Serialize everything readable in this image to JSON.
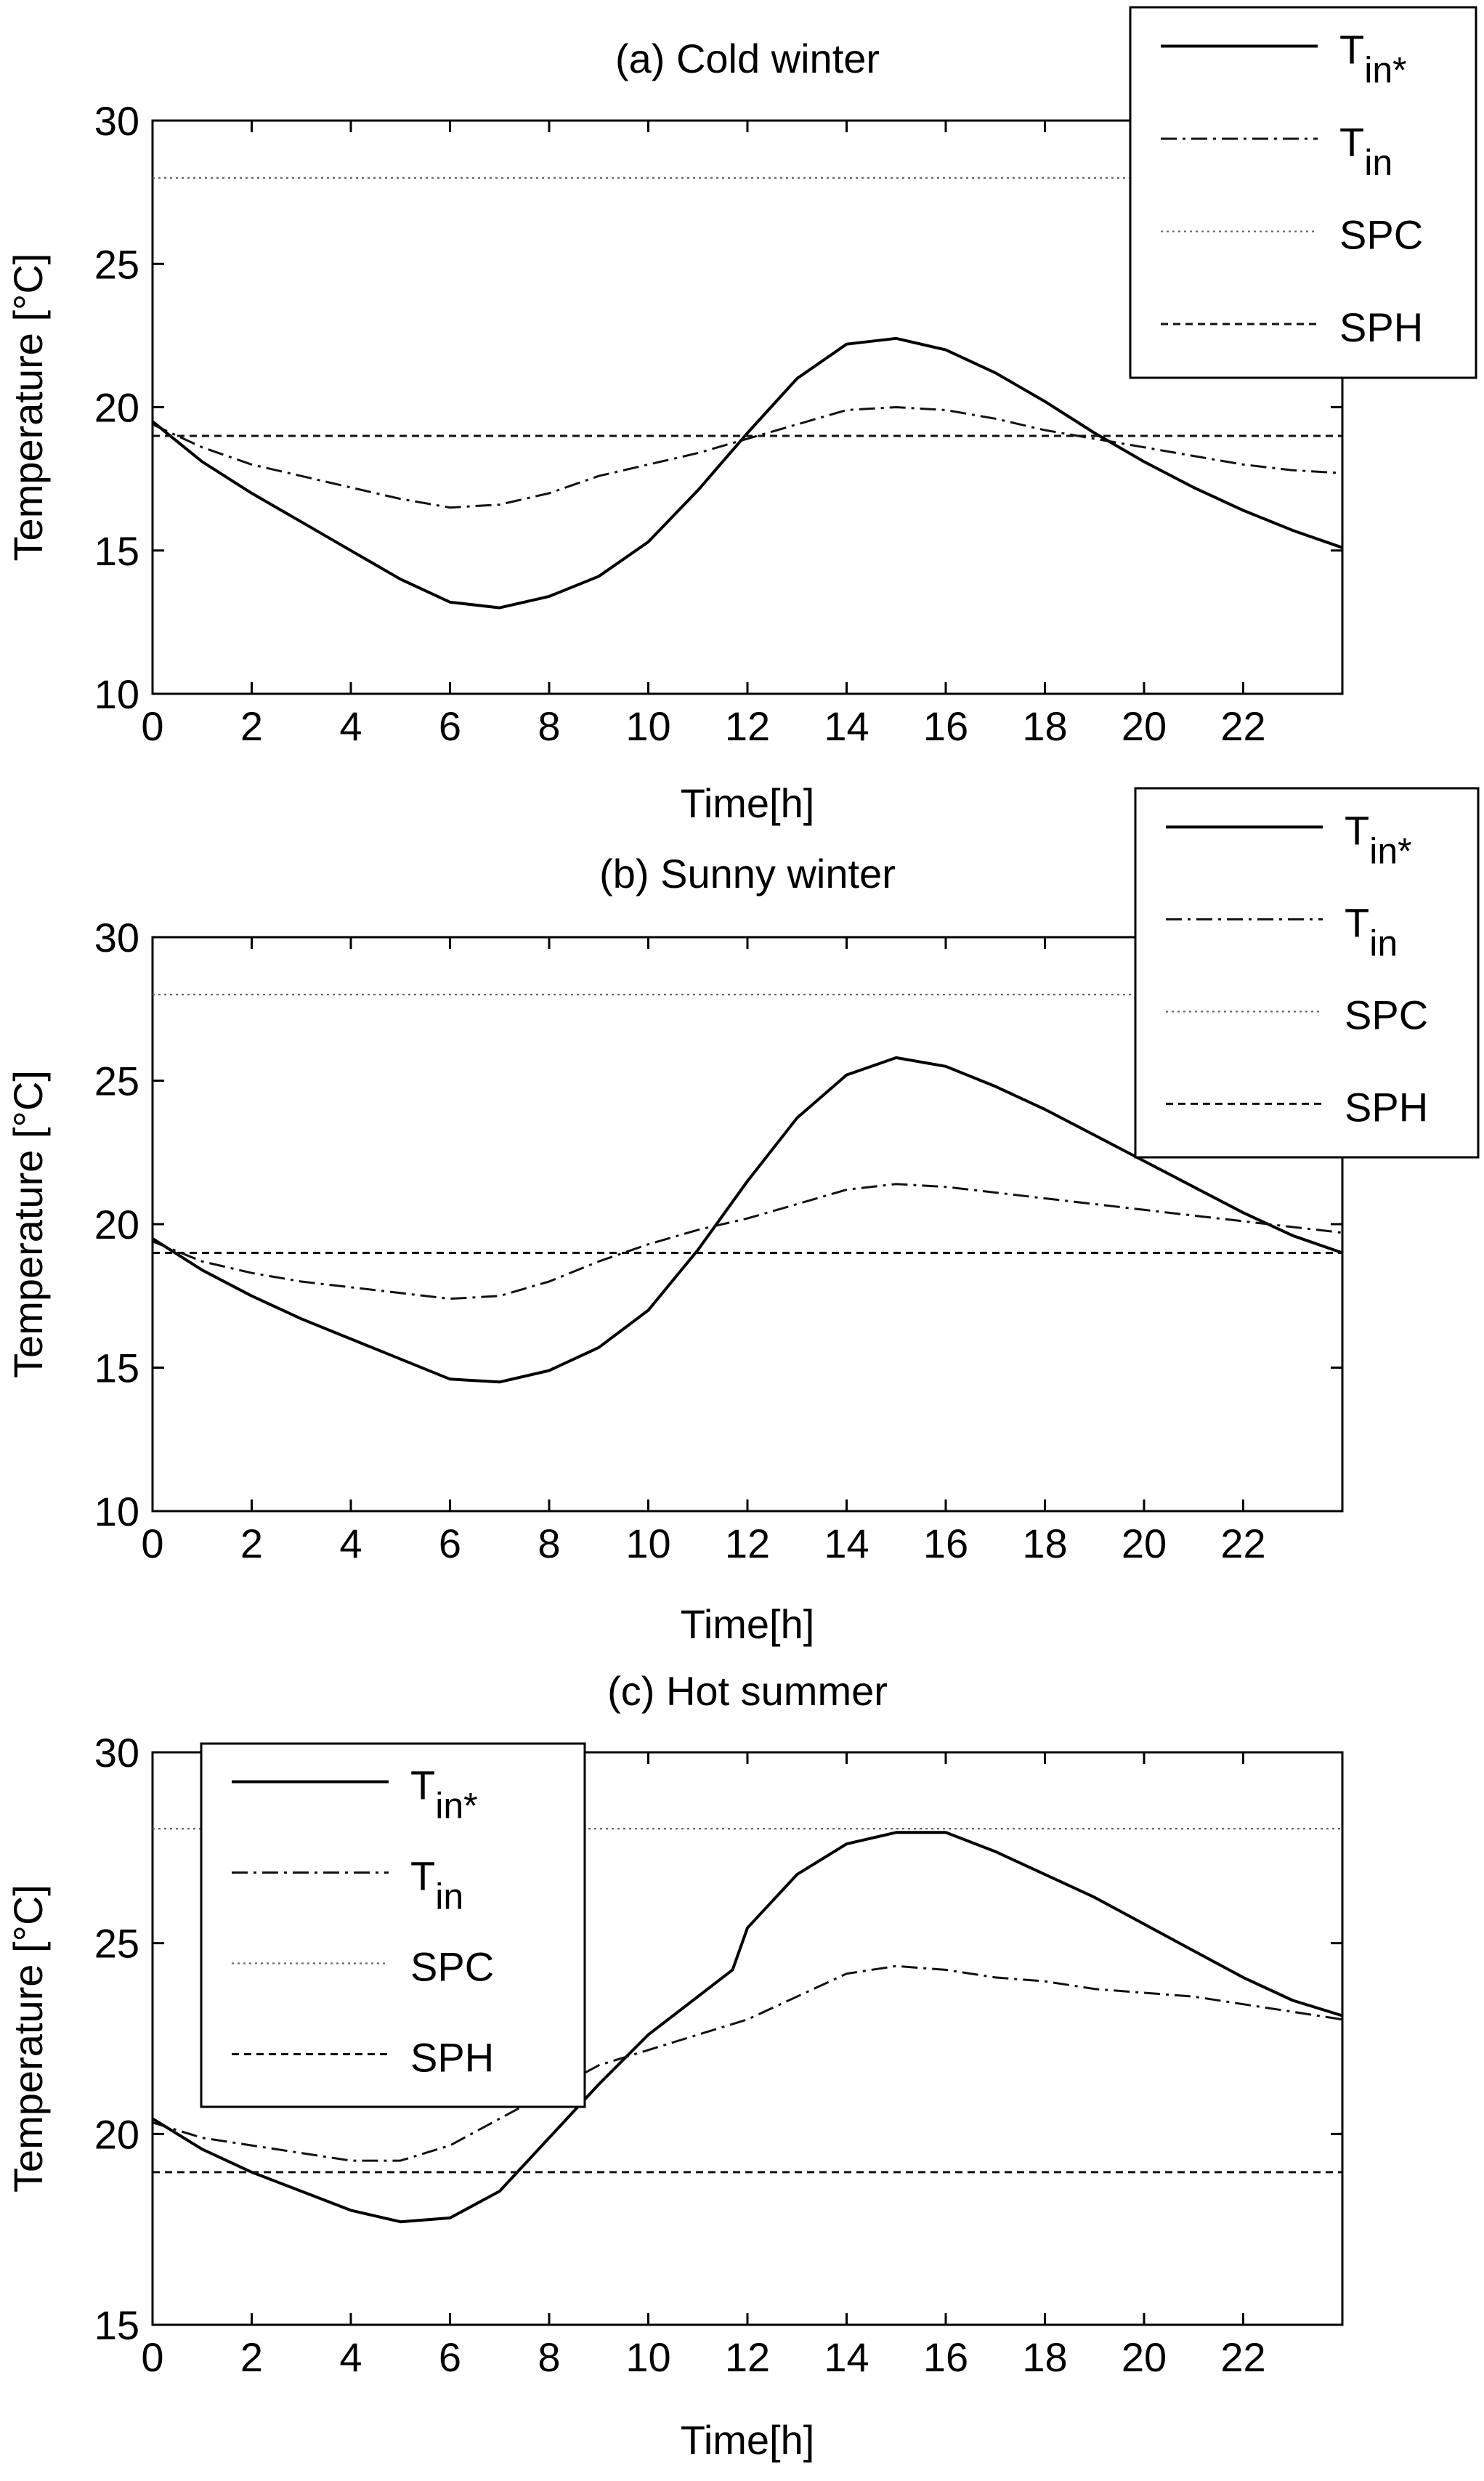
{
  "figure": {
    "xlabel": "Time[h]",
    "ylabel": "Temperature [°C]"
  },
  "legend_labels": [
    {
      "key": "tin_star",
      "main": "T",
      "sub": "in*"
    },
    {
      "key": "tin",
      "main": "T",
      "sub": "in"
    },
    {
      "key": "spc",
      "main": "SPC",
      "sub": ""
    },
    {
      "key": "sph",
      "main": "SPH",
      "sub": ""
    }
  ],
  "chart_data": [
    {
      "type": "line",
      "title": "(a) Cold winter",
      "xlabel": "Time[h]",
      "ylabel": "Temperature [°C]",
      "xlim": [
        0,
        24
      ],
      "ylim": [
        10,
        30
      ],
      "xticks": [
        0,
        2,
        4,
        6,
        8,
        10,
        12,
        14,
        16,
        18,
        20,
        22
      ],
      "yticks": [
        10,
        15,
        20,
        25,
        30
      ],
      "legend_position": "top-right",
      "series": [
        {
          "name": "T_in*",
          "style": "solid",
          "x": [
            0,
            1,
            2,
            3,
            4,
            5,
            6,
            7,
            8,
            9,
            10,
            11,
            12,
            13,
            14,
            15,
            16,
            17,
            18,
            19,
            20,
            21,
            22,
            23,
            24
          ],
          "y": [
            19.5,
            18.1,
            17.0,
            16.0,
            15.0,
            14.0,
            13.2,
            13.0,
            13.4,
            14.1,
            15.3,
            17.1,
            19.1,
            21.0,
            22.2,
            22.4,
            22.0,
            21.2,
            20.2,
            19.1,
            18.1,
            17.2,
            16.4,
            15.7,
            15.1
          ]
        },
        {
          "name": "T_in",
          "style": "dashdot",
          "x": [
            0,
            1,
            2,
            3,
            4,
            5,
            6,
            7,
            8,
            9,
            10,
            11,
            12,
            13,
            14,
            15,
            16,
            17,
            18,
            19,
            20,
            21,
            22,
            23,
            24
          ],
          "y": [
            19.4,
            18.6,
            18.0,
            17.6,
            17.2,
            16.8,
            16.5,
            16.6,
            17.0,
            17.6,
            18.0,
            18.4,
            18.9,
            19.4,
            19.9,
            20.0,
            19.9,
            19.6,
            19.2,
            18.9,
            18.6,
            18.3,
            18.0,
            17.8,
            17.7
          ]
        },
        {
          "name": "SPC",
          "style": "dotted",
          "x": [
            0,
            24
          ],
          "y": [
            28,
            28
          ]
        },
        {
          "name": "SPH",
          "style": "dashed",
          "x": [
            0,
            24
          ],
          "y": [
            19,
            19
          ]
        }
      ]
    },
    {
      "type": "line",
      "title": "(b) Sunny winter",
      "xlabel": "Time[h]",
      "ylabel": "Temperature [°C]",
      "xlim": [
        0,
        24
      ],
      "ylim": [
        10,
        30
      ],
      "xticks": [
        0,
        2,
        4,
        6,
        8,
        10,
        12,
        14,
        16,
        18,
        20,
        22
      ],
      "yticks": [
        10,
        15,
        20,
        25,
        30
      ],
      "legend_position": "top-right",
      "series": [
        {
          "name": "T_in*",
          "style": "solid",
          "x": [
            0,
            1,
            2,
            3,
            4,
            5,
            6,
            7,
            8,
            9,
            10,
            11,
            12,
            13,
            14,
            15,
            16,
            17,
            18,
            19,
            20,
            21,
            22,
            23,
            24
          ],
          "y": [
            19.5,
            18.4,
            17.5,
            16.7,
            16.0,
            15.3,
            14.6,
            14.5,
            14.9,
            15.7,
            17.0,
            19.1,
            21.5,
            23.7,
            25.2,
            25.8,
            25.5,
            24.8,
            24.0,
            23.1,
            22.2,
            21.3,
            20.4,
            19.6,
            19.0
          ]
        },
        {
          "name": "T_in",
          "style": "dashdot",
          "x": [
            0,
            1,
            2,
            3,
            4,
            5,
            6,
            7,
            8,
            9,
            10,
            11,
            12,
            13,
            14,
            15,
            16,
            17,
            18,
            19,
            20,
            21,
            22,
            23,
            24
          ],
          "y": [
            19.4,
            18.7,
            18.3,
            18.0,
            17.8,
            17.6,
            17.4,
            17.5,
            18.0,
            18.7,
            19.3,
            19.8,
            20.2,
            20.7,
            21.2,
            21.4,
            21.3,
            21.1,
            20.9,
            20.7,
            20.5,
            20.3,
            20.1,
            19.9,
            19.7
          ]
        },
        {
          "name": "SPC",
          "style": "dotted",
          "x": [
            0,
            24
          ],
          "y": [
            28,
            28
          ]
        },
        {
          "name": "SPH",
          "style": "dashed",
          "x": [
            0,
            24
          ],
          "y": [
            19,
            19
          ]
        }
      ]
    },
    {
      "type": "line",
      "title": "(c) Hot summer",
      "xlabel": "Time[h]",
      "ylabel": "Temperature [°C]",
      "xlim": [
        0,
        24
      ],
      "ylim": [
        15,
        30
      ],
      "xticks": [
        0,
        2,
        4,
        6,
        8,
        10,
        12,
        14,
        16,
        18,
        20,
        22
      ],
      "yticks": [
        15,
        20,
        25,
        30
      ],
      "legend_position": "top-left",
      "series": [
        {
          "name": "T_in*",
          "style": "solid",
          "x": [
            0,
            1,
            2,
            3,
            4,
            5,
            6,
            7,
            8,
            9,
            10,
            11,
            11.7,
            12,
            13,
            14,
            15,
            16,
            17,
            18,
            19,
            20,
            21,
            22,
            23,
            24
          ],
          "y": [
            20.4,
            19.6,
            19.0,
            18.5,
            18.0,
            17.7,
            17.8,
            18.5,
            19.9,
            21.3,
            22.6,
            23.6,
            24.3,
            25.4,
            26.8,
            27.6,
            27.9,
            27.9,
            27.4,
            26.8,
            26.2,
            25.5,
            24.8,
            24.1,
            23.5,
            23.1
          ]
        },
        {
          "name": "T_in",
          "style": "dashdot",
          "x": [
            0,
            1,
            2,
            3,
            4,
            5,
            6,
            7,
            8,
            9,
            10,
            11,
            12,
            13,
            14,
            15,
            16,
            17,
            18,
            19,
            20,
            21,
            22,
            23,
            24
          ],
          "y": [
            20.3,
            19.9,
            19.7,
            19.5,
            19.3,
            19.3,
            19.7,
            20.4,
            21.1,
            21.8,
            22.2,
            22.6,
            23.0,
            23.6,
            24.2,
            24.4,
            24.3,
            24.1,
            24.0,
            23.8,
            23.7,
            23.6,
            23.4,
            23.2,
            23.0
          ]
        },
        {
          "name": "SPC",
          "style": "dotted",
          "x": [
            0,
            24
          ],
          "y": [
            28,
            28
          ]
        },
        {
          "name": "SPH",
          "style": "dashed",
          "x": [
            0,
            24
          ],
          "y": [
            19,
            19
          ]
        }
      ]
    }
  ]
}
